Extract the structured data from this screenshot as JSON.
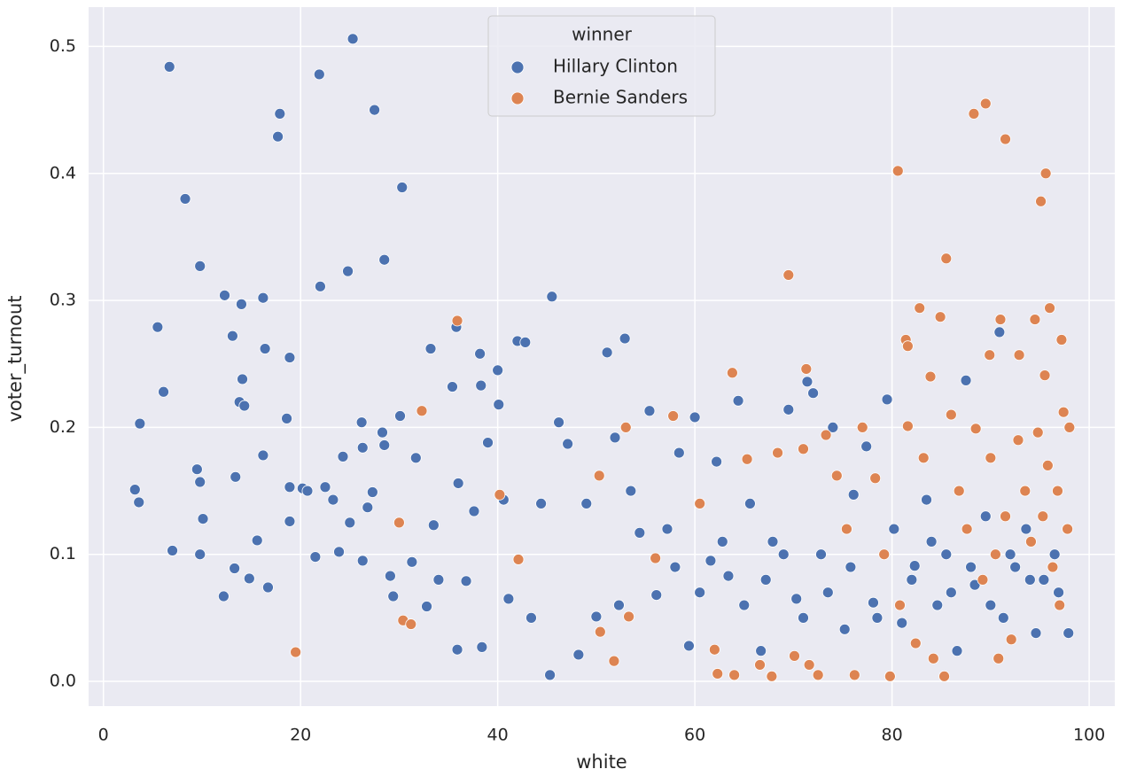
{
  "chart_data": {
    "type": "scatter",
    "x_label": "white",
    "y_label": "voter_turnout",
    "legend_title": "winner",
    "legend_position": "upper center",
    "grid": true,
    "xlim": [
      -1.5,
      102.6
    ],
    "ylim": [
      -0.0195,
      0.531
    ],
    "xticks": [
      0,
      20,
      40,
      60,
      80,
      100
    ],
    "yticks": [
      {
        "value": 0,
        "label": "0.0"
      },
      0.1,
      0.2,
      0.3,
      0.4,
      0.5
    ],
    "series": [
      {
        "name": "Hillary Clinton",
        "color": "#4c72b0",
        "x": [
          6.7,
          25.3,
          21.9,
          17.9,
          27.5,
          17.7,
          8.3,
          30.3,
          9.8,
          28.5,
          24.8,
          5.5,
          12.3,
          14.0,
          16.2,
          22.0,
          13.1,
          16.4,
          18.9,
          14.1,
          6.1,
          13.8,
          14.3,
          3.7,
          18.6,
          3.2,
          3.6,
          7.0,
          9.8,
          9.5,
          9.8,
          10.1,
          12.2,
          13.3,
          13.4,
          14.8,
          15.6,
          16.2,
          16.7,
          18.9,
          18.9,
          20.2,
          20.7,
          21.5,
          22.5,
          23.3,
          23.9,
          24.3,
          25.0,
          26.2,
          26.3,
          26.3,
          26.8,
          27.3,
          28.3,
          28.5,
          29.1,
          29.4,
          30.1,
          31.3,
          31.7,
          32.8,
          33.2,
          33.5,
          34.0,
          35.4,
          35.8,
          35.9,
          36.0,
          36.8,
          37.6,
          38.2,
          38.3,
          38.4,
          39.0,
          40.0,
          40.1,
          40.6,
          41.1,
          42.0,
          42.8,
          43.4,
          44.4,
          45.3,
          45.5,
          46.2,
          47.1,
          48.2,
          49.0,
          50.0,
          51.1,
          51.9,
          52.3,
          52.9,
          53.5,
          54.4,
          55.4,
          56.1,
          57.2,
          58.4,
          59.4,
          60.0,
          61.6,
          62.2,
          63.4,
          64.4,
          65.6,
          66.7,
          67.9,
          69.5,
          70.3,
          71.4,
          72.0,
          72.8,
          74.0,
          75.2,
          76.1,
          77.4,
          78.1,
          79.5,
          80.2,
          81.0,
          82.3,
          83.5,
          84.6,
          85.5,
          86.6,
          87.5,
          88.4,
          89.5,
          90.9,
          91.3,
          92.5,
          93.6,
          94.6,
          95.4,
          96.5,
          97.9,
          96.9,
          58.0,
          60.5,
          62.8,
          65.0,
          67.2,
          69.0,
          71.0,
          73.5,
          75.8,
          78.5,
          82.0,
          84.0,
          86.0,
          88.0,
          90.0,
          92.0,
          94.0
        ],
        "values": [
          0.484,
          0.506,
          0.478,
          0.447,
          0.45,
          0.429,
          0.38,
          0.389,
          0.327,
          0.332,
          0.323,
          0.279,
          0.304,
          0.297,
          0.302,
          0.311,
          0.272,
          0.262,
          0.255,
          0.238,
          0.228,
          0.22,
          0.217,
          0.203,
          0.207,
          0.151,
          0.141,
          0.103,
          0.1,
          0.167,
          0.157,
          0.128,
          0.067,
          0.089,
          0.161,
          0.081,
          0.111,
          0.178,
          0.074,
          0.153,
          0.126,
          0.152,
          0.15,
          0.098,
          0.153,
          0.143,
          0.102,
          0.177,
          0.125,
          0.204,
          0.184,
          0.095,
          0.137,
          0.149,
          0.196,
          0.186,
          0.083,
          0.067,
          0.209,
          0.094,
          0.176,
          0.059,
          0.262,
          0.123,
          0.08,
          0.232,
          0.279,
          0.025,
          0.156,
          0.079,
          0.134,
          0.258,
          0.233,
          0.027,
          0.188,
          0.245,
          0.218,
          0.143,
          0.065,
          0.268,
          0.267,
          0.05,
          0.14,
          0.005,
          0.303,
          0.204,
          0.187,
          0.021,
          0.14,
          0.051,
          0.259,
          0.192,
          0.06,
          0.27,
          0.15,
          0.117,
          0.213,
          0.068,
          0.12,
          0.18,
          0.028,
          0.208,
          0.095,
          0.173,
          0.083,
          0.221,
          0.14,
          0.024,
          0.11,
          0.214,
          0.065,
          0.236,
          0.227,
          0.1,
          0.2,
          0.041,
          0.147,
          0.185,
          0.062,
          0.222,
          0.12,
          0.046,
          0.091,
          0.143,
          0.06,
          0.1,
          0.024,
          0.237,
          0.076,
          0.13,
          0.275,
          0.05,
          0.09,
          0.12,
          0.038,
          0.08,
          0.1,
          0.038,
          0.07,
          0.09,
          0.07,
          0.11,
          0.06,
          0.08,
          0.1,
          0.05,
          0.07,
          0.09,
          0.05,
          0.08,
          0.11,
          0.07,
          0.09,
          0.06,
          0.1,
          0.08
        ]
      },
      {
        "name": "Bernie Sanders",
        "color": "#dd8452",
        "x": [
          89.5,
          88.3,
          91.5,
          80.6,
          95.6,
          95.1,
          85.5,
          69.5,
          82.8,
          96.0,
          84.9,
          91.0,
          94.5,
          81.4,
          97.2,
          81.6,
          92.9,
          89.9,
          83.9,
          71.3,
          95.5,
          63.8,
          35.9,
          32.3,
          53.0,
          30.0,
          19.5,
          30.4,
          31.2,
          40.2,
          42.1,
          50.3,
          50.4,
          51.8,
          53.3,
          56.0,
          57.8,
          60.5,
          62.0,
          62.3,
          64.0,
          65.3,
          66.6,
          67.8,
          68.4,
          70.1,
          71.0,
          71.6,
          72.5,
          73.3,
          74.4,
          75.4,
          76.2,
          77.0,
          78.3,
          79.2,
          79.8,
          80.8,
          81.6,
          82.4,
          83.2,
          84.2,
          85.3,
          86.0,
          86.8,
          87.6,
          88.5,
          89.2,
          90.0,
          90.8,
          91.5,
          92.1,
          92.8,
          93.5,
          94.1,
          94.8,
          95.3,
          95.8,
          96.3,
          96.8,
          97.4,
          97.8,
          98.0,
          97.0,
          90.5
        ],
        "values": [
          0.455,
          0.447,
          0.427,
          0.402,
          0.4,
          0.378,
          0.333,
          0.32,
          0.294,
          0.294,
          0.287,
          0.285,
          0.285,
          0.269,
          0.269,
          0.264,
          0.257,
          0.257,
          0.24,
          0.246,
          0.241,
          0.243,
          0.284,
          0.213,
          0.2,
          0.125,
          0.023,
          0.048,
          0.045,
          0.147,
          0.096,
          0.162,
          0.039,
          0.016,
          0.051,
          0.097,
          0.209,
          0.14,
          0.025,
          0.006,
          0.005,
          0.175,
          0.013,
          0.004,
          0.18,
          0.02,
          0.183,
          0.013,
          0.005,
          0.194,
          0.162,
          0.12,
          0.005,
          0.2,
          0.16,
          0.1,
          0.004,
          0.06,
          0.201,
          0.03,
          0.176,
          0.018,
          0.004,
          0.21,
          0.15,
          0.12,
          0.199,
          0.08,
          0.176,
          0.018,
          0.13,
          0.033,
          0.19,
          0.15,
          0.11,
          0.196,
          0.13,
          0.17,
          0.09,
          0.15,
          0.212,
          0.12,
          0.2,
          0.06,
          0.1
        ]
      }
    ]
  }
}
